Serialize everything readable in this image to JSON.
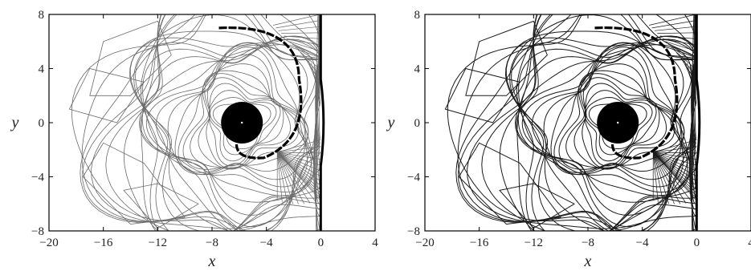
{
  "chart_data": [
    {
      "type": "contour",
      "panel": "left",
      "xlabel": "x",
      "ylabel": "y",
      "xlim": [
        -20,
        4
      ],
      "ylim": [
        -8,
        8
      ],
      "xticks": [
        -20,
        -16,
        -12,
        -8,
        -4,
        0,
        4
      ],
      "yticks": [
        -8,
        -4,
        0,
        4,
        8
      ],
      "xtick_labels": [
        "−20",
        "−16",
        "−12",
        "−8",
        "−4",
        "0",
        "4"
      ],
      "ytick_labels": [
        "−8",
        "−4",
        "0",
        "4",
        "8"
      ],
      "vortex_center": [
        -5.8,
        0
      ],
      "shock_x": 0,
      "line_color": "#6a6a6a"
    },
    {
      "type": "contour",
      "panel": "right",
      "xlabel": "x",
      "ylabel": "y",
      "xlim": [
        -20,
        4
      ],
      "ylim": [
        -8,
        8
      ],
      "xticks": [
        -20,
        -16,
        -12,
        -8,
        -4,
        0,
        4
      ],
      "yticks": [
        -8,
        -4,
        0,
        4,
        8
      ],
      "xtick_labels": [
        "−20",
        "−16",
        "−12",
        "−8",
        "−4",
        "0",
        "4"
      ],
      "ytick_labels": [
        "−8",
        "−4",
        "0",
        "4",
        "8"
      ],
      "vortex_center": [
        -5.8,
        0
      ],
      "shock_x": 0,
      "line_color": "#1a1a1a"
    }
  ]
}
